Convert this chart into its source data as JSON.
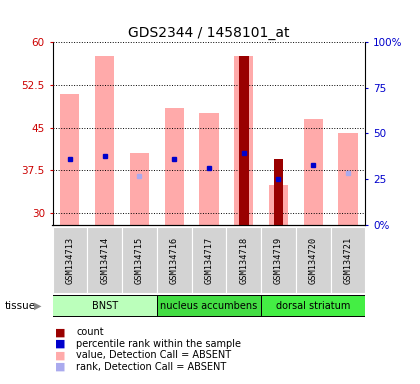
{
  "title": "GDS2344 / 1458101_at",
  "samples": [
    "GSM134713",
    "GSM134714",
    "GSM134715",
    "GSM134716",
    "GSM134717",
    "GSM134718",
    "GSM134719",
    "GSM134720",
    "GSM134721"
  ],
  "ylim_left": [
    28,
    60
  ],
  "ylim_right": [
    0,
    100
  ],
  "yticks_left": [
    30,
    37.5,
    45,
    52.5,
    60
  ],
  "yticks_right": [
    0,
    25,
    50,
    75,
    100
  ],
  "pink_bar_top": [
    51.0,
    57.5,
    40.5,
    48.5,
    47.5,
    57.5,
    35.0,
    46.5,
    44.0
  ],
  "pink_bar_bottom": [
    28,
    28,
    28,
    28,
    28,
    28,
    28,
    28,
    28
  ],
  "red_bar_top": [
    null,
    null,
    null,
    null,
    null,
    57.5,
    39.5,
    null,
    null
  ],
  "red_bar_bottom": [
    null,
    null,
    null,
    null,
    null,
    28,
    28,
    null,
    null
  ],
  "blue_dot_y": [
    39.5,
    40.0,
    null,
    39.5,
    38.0,
    40.5,
    36.0,
    38.5,
    null
  ],
  "lightblue_dot_y": [
    null,
    null,
    36.5,
    null,
    null,
    null,
    null,
    null,
    37.0
  ],
  "has_red": [
    false,
    false,
    false,
    false,
    false,
    true,
    true,
    false,
    false
  ],
  "has_blue": [
    true,
    true,
    false,
    true,
    true,
    true,
    true,
    true,
    false
  ],
  "has_lightblue": [
    false,
    false,
    true,
    false,
    false,
    false,
    false,
    false,
    true
  ],
  "tissue_groups": [
    {
      "label": "BNST",
      "start": 0,
      "end": 3
    },
    {
      "label": "nucleus accumbens",
      "start": 3,
      "end": 6
    },
    {
      "label": "dorsal striatum",
      "start": 6,
      "end": 9
    }
  ],
  "tissue_colors": [
    "#bbffbb",
    "#44dd44",
    "#44ee44"
  ],
  "bar_width": 0.55,
  "red_bar_width": 0.28,
  "pink_color": "#ffaaaa",
  "red_color": "#990000",
  "blue_color": "#0000cc",
  "lightblue_color": "#aaaaee",
  "xlabel_color": "#cc0000",
  "ylabel_right_color": "#0000cc",
  "legend_items": [
    {
      "color": "#990000",
      "label": "count"
    },
    {
      "color": "#0000cc",
      "label": "percentile rank within the sample"
    },
    {
      "color": "#ffaaaa",
      "label": "value, Detection Call = ABSENT"
    },
    {
      "color": "#aaaaee",
      "label": "rank, Detection Call = ABSENT"
    }
  ]
}
